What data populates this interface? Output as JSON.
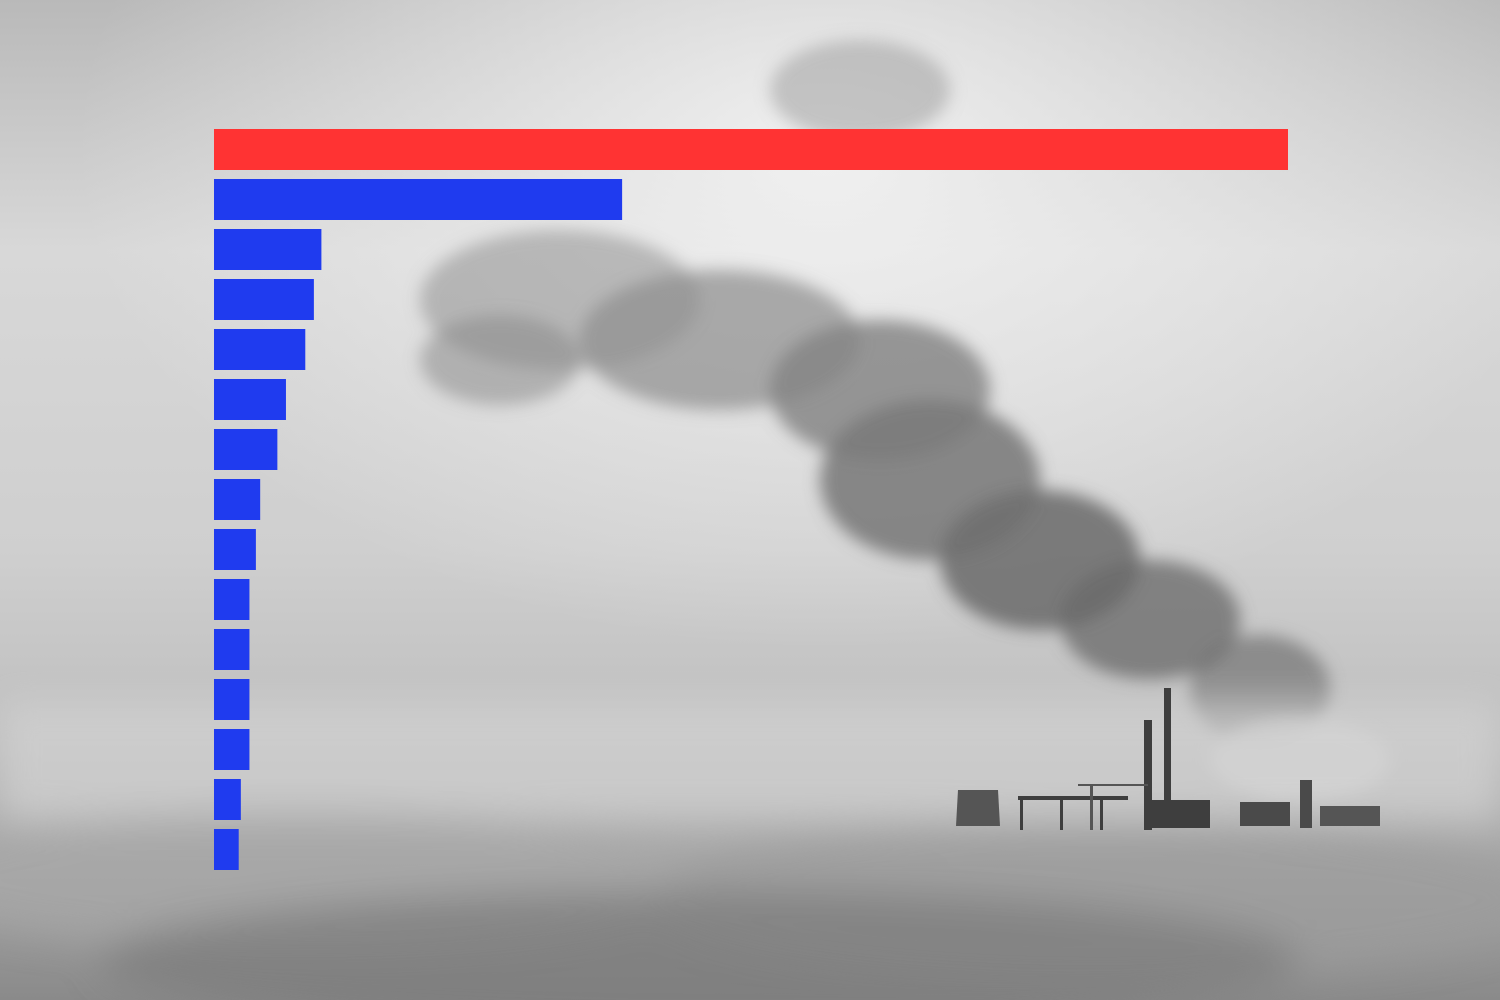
{
  "background": {
    "description_icon": "factory-smokestack-photo",
    "palette": [
      "#f2f2f2",
      "#bdbdbd",
      "#7a7a7a",
      "#444444"
    ]
  },
  "chart_data": {
    "type": "bar",
    "orientation": "horizontal",
    "title": "",
    "xlabel": "",
    "ylabel": "",
    "xlim": [
      0,
      100
    ],
    "grid": false,
    "legend": "none",
    "highlight_color": "#ff3333",
    "bar_color": "#1f3bef",
    "values": [
      100,
      38,
      10,
      9.3,
      8.5,
      6.7,
      5.9,
      4.3,
      3.9,
      3.3,
      3.3,
      3.3,
      3.3,
      2.5,
      2.3
    ],
    "highlight_index": 0
  }
}
